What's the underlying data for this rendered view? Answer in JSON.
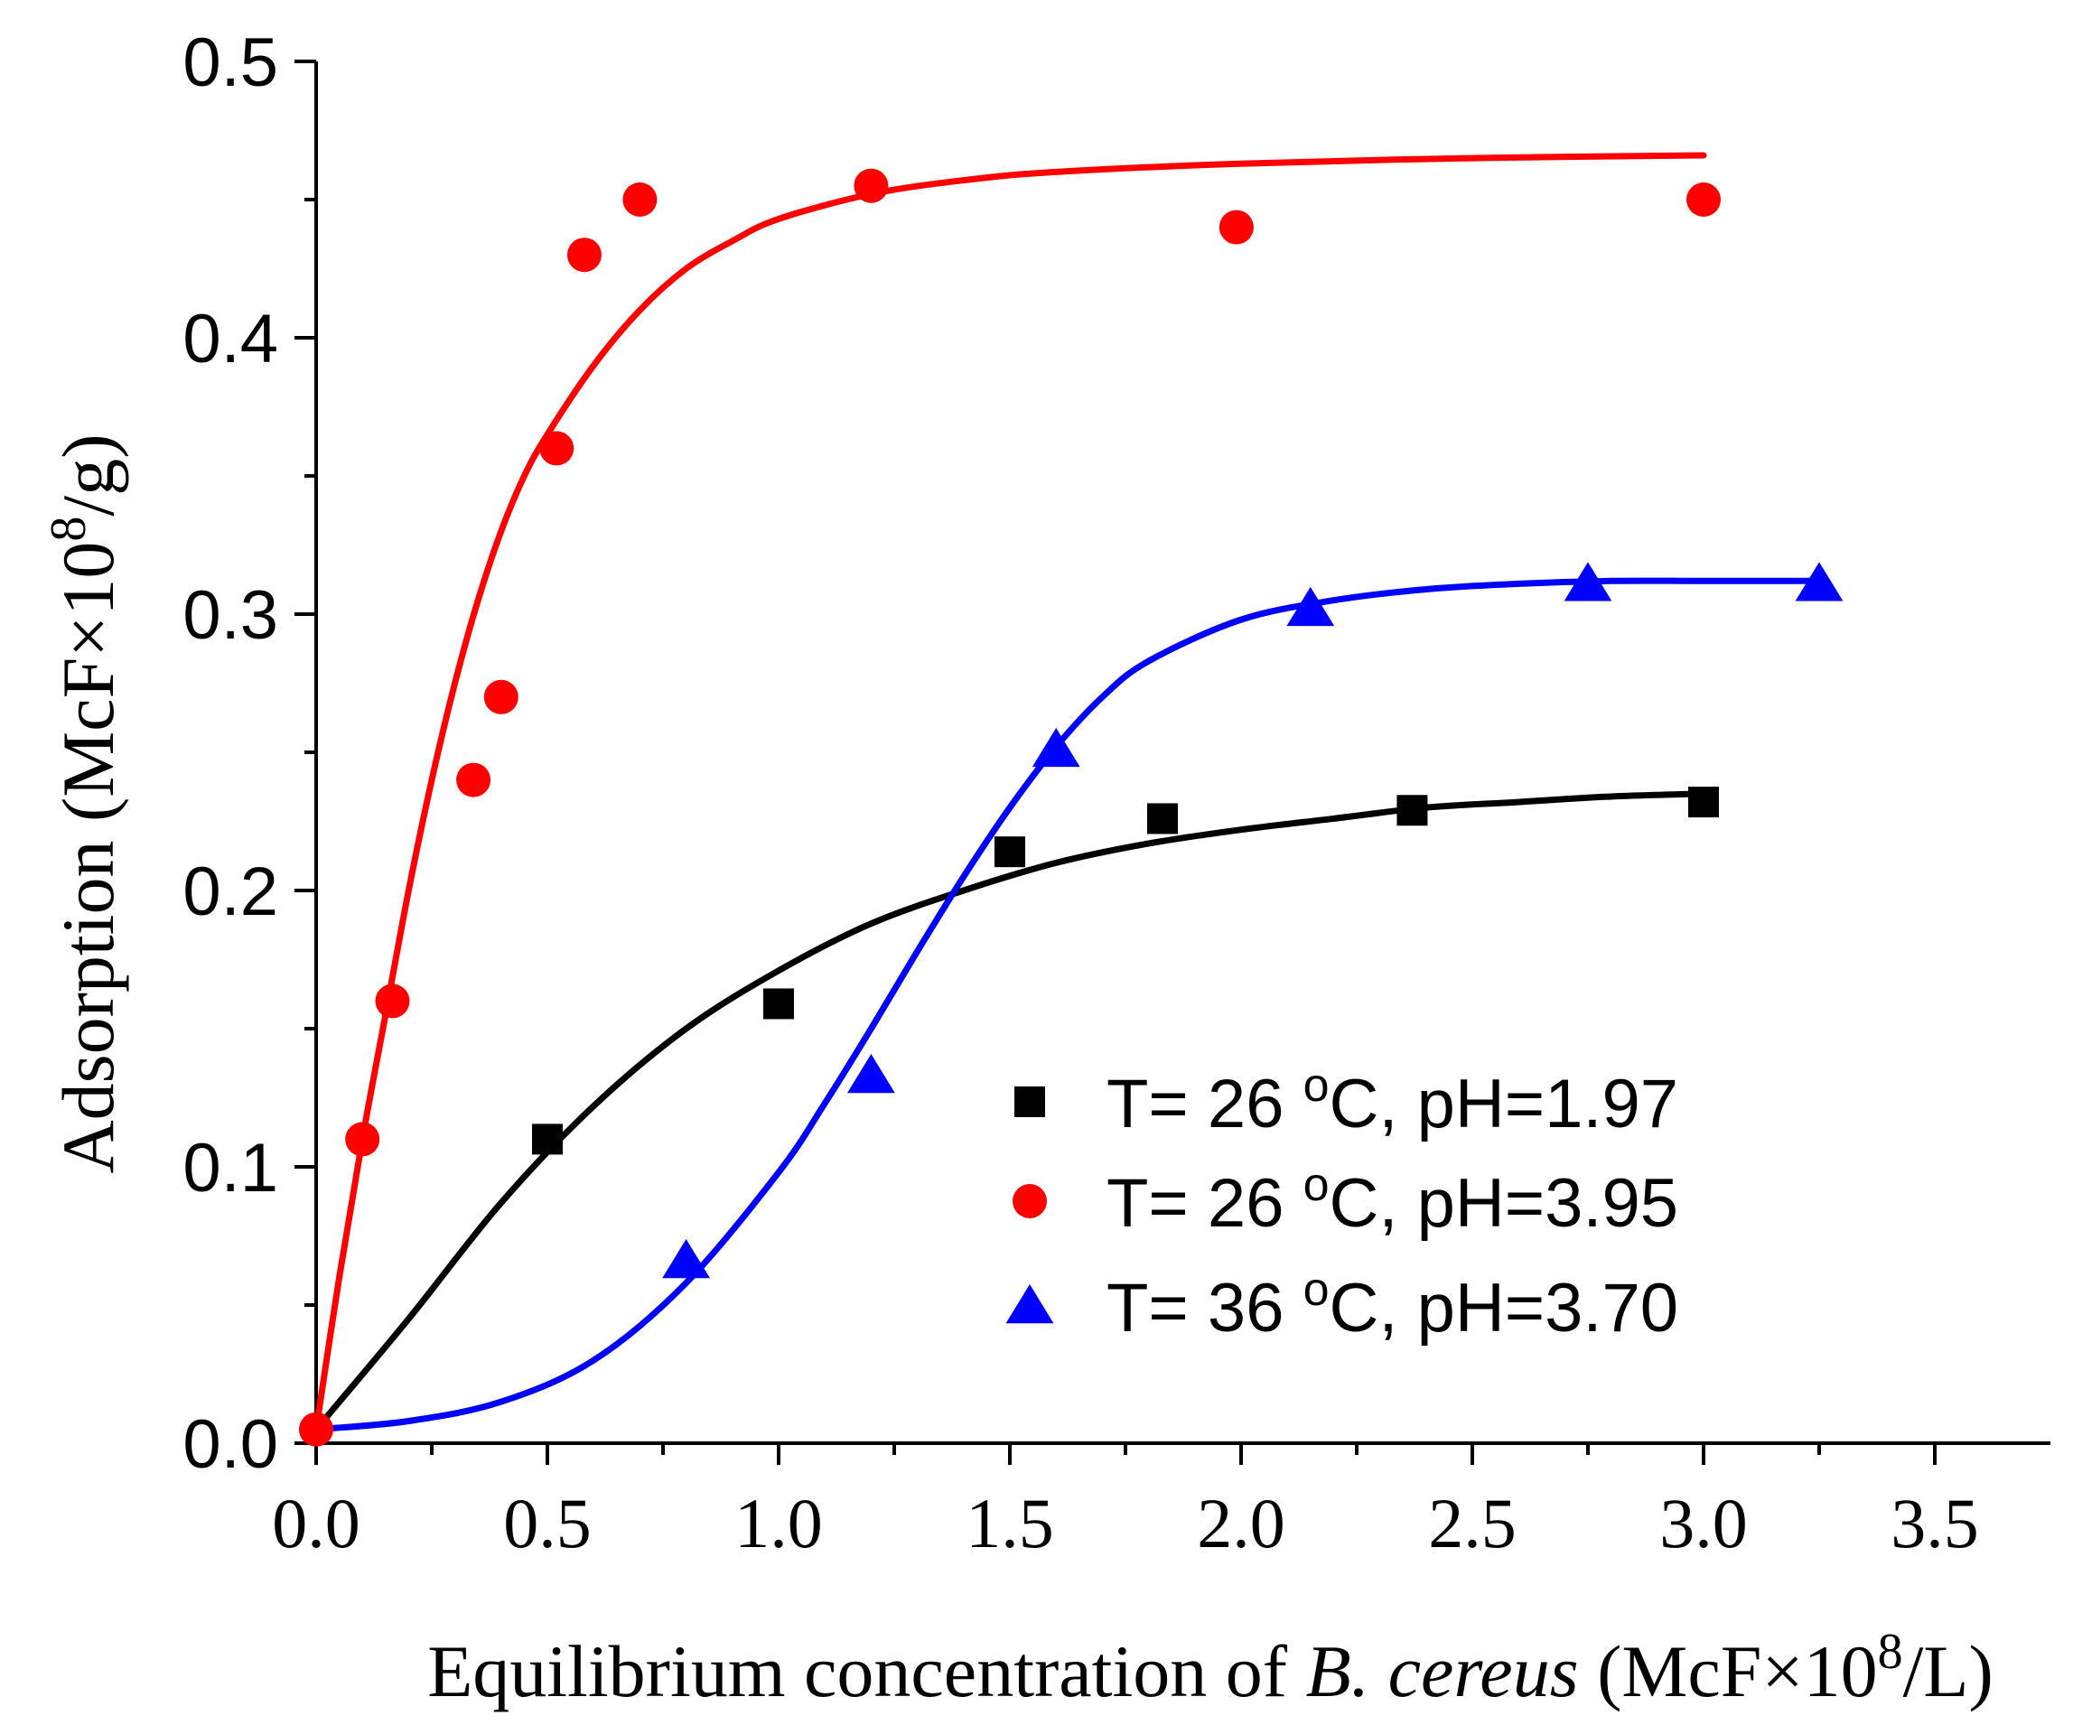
{
  "chart_data": {
    "type": "scatter",
    "xlabel": {
      "prefix": "Equilibrium concentration of ",
      "italic": "B. cereus",
      "suffix_pre": " (McF×10",
      "superscript": "8",
      "suffix_post": "/L)"
    },
    "ylabel": {
      "prefix": "Adsorption (McF×10",
      "superscript": "8",
      "suffix": "/g)"
    },
    "xlim": [
      0,
      3.75
    ],
    "ylim": [
      0,
      0.5
    ],
    "xticks": [
      "0.0",
      "0.5",
      "1.0",
      "1.5",
      "2.0",
      "2.5",
      "3.0",
      "3.5"
    ],
    "xtick_values": [
      0,
      0.5,
      1.0,
      1.5,
      2.0,
      2.5,
      3.0,
      3.5
    ],
    "yticks": [
      "0.0",
      "0.1",
      "0.2",
      "0.3",
      "0.4",
      "0.5"
    ],
    "ytick_values": [
      0,
      0.1,
      0.2,
      0.3,
      0.4,
      0.5
    ],
    "legend_position": "lower-right",
    "series": [
      {
        "name": "T= 26 °C, pH=1.97",
        "legend_text": "T= 26 ",
        "legend_sup": "o",
        "legend_tail": "C, pH=1.97",
        "color": "#000000",
        "marker": "square",
        "x": [
          0.5,
          1.0,
          1.5,
          1.83,
          2.37,
          3.0
        ],
        "y": [
          0.11,
          0.159,
          0.214,
          0.226,
          0.229,
          0.232
        ],
        "fit_x": [
          0.0,
          0.2,
          0.4,
          0.6,
          0.8,
          1.0,
          1.2,
          1.4,
          1.6,
          1.8,
          2.0,
          2.2,
          2.4,
          2.6,
          2.8,
          3.0
        ],
        "fit_y": [
          0.005,
          0.045,
          0.087,
          0.122,
          0.15,
          0.171,
          0.188,
          0.2,
          0.21,
          0.217,
          0.222,
          0.226,
          0.23,
          0.232,
          0.234,
          0.235
        ]
      },
      {
        "name": "T= 26 °C, pH=3.95",
        "legend_text": "T= 26 ",
        "legend_sup": "o",
        "legend_tail": "C, pH=3.95",
        "color": "#ff0000",
        "marker": "circle",
        "x": [
          0.0,
          0.1,
          0.165,
          0.34,
          0.4,
          0.52,
          0.58,
          0.7,
          1.2,
          1.99,
          3.0
        ],
        "y": [
          0.005,
          0.11,
          0.16,
          0.24,
          0.27,
          0.36,
          0.43,
          0.45,
          0.455,
          0.44,
          0.45
        ],
        "fit_x": [
          0.0,
          0.05,
          0.1,
          0.15,
          0.2,
          0.25,
          0.3,
          0.35,
          0.4,
          0.45,
          0.5,
          0.6,
          0.7,
          0.8,
          0.9,
          1.0,
          1.2,
          1.4,
          1.6,
          2.0,
          2.5,
          3.0
        ],
        "fit_y": [
          0.005,
          0.06,
          0.11,
          0.155,
          0.2,
          0.24,
          0.275,
          0.305,
          0.33,
          0.35,
          0.365,
          0.39,
          0.41,
          0.425,
          0.435,
          0.443,
          0.452,
          0.457,
          0.46,
          0.463,
          0.465,
          0.466
        ]
      },
      {
        "name": "T= 36 °C, pH=3.70",
        "legend_text": "T= 36 ",
        "legend_sup": "o",
        "legend_tail": "C, pH=3.70",
        "color": "#0000ff",
        "marker": "triangle",
        "x": [
          0.8,
          1.2,
          1.6,
          2.15,
          2.75,
          3.25
        ],
        "y": [
          0.066,
          0.133,
          0.251,
          0.302,
          0.311,
          0.311
        ],
        "fit_x": [
          0.0,
          0.2,
          0.4,
          0.6,
          0.8,
          1.0,
          1.1,
          1.2,
          1.3,
          1.4,
          1.5,
          1.6,
          1.7,
          1.8,
          2.0,
          2.2,
          2.4,
          2.6,
          2.8,
          3.0,
          3.25
        ],
        "fit_y": [
          0.005,
          0.008,
          0.015,
          0.03,
          0.058,
          0.098,
          0.123,
          0.15,
          0.178,
          0.205,
          0.23,
          0.252,
          0.27,
          0.283,
          0.298,
          0.305,
          0.309,
          0.311,
          0.312,
          0.312,
          0.312
        ]
      }
    ]
  }
}
